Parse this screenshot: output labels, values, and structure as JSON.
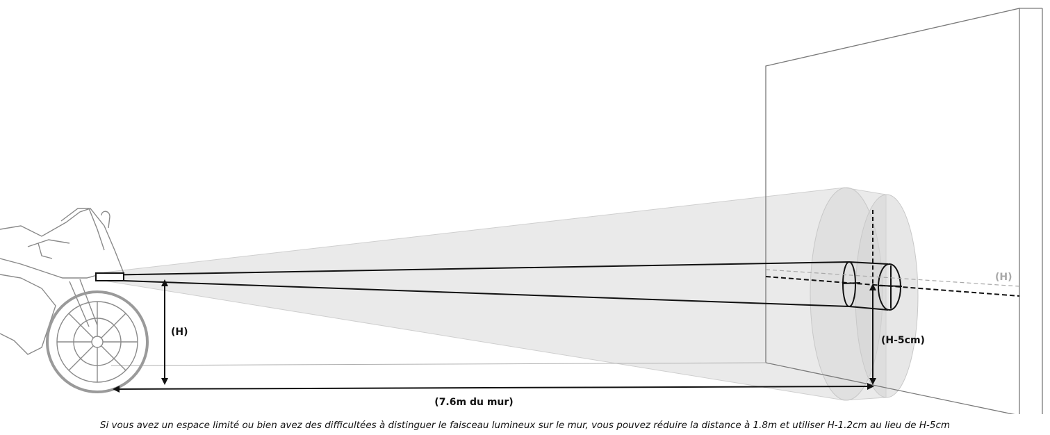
{
  "labels": {
    "height": "(H)",
    "height_wall": "(H)",
    "target": "(H-5cm)",
    "distance": "(7.6m du mur)"
  },
  "caption": "Si vous avez un espace limité ou bien avez des difficultées à distinguer le faisceau lumineux sur le mur, vous pouvez réduire la distance à 1.8m et utiliser H-1.2cm au lieu de H-5cm",
  "colors": {
    "beam_fill": "#dcdcdc",
    "line": "#111111",
    "wall": "#7a7a7a",
    "muted_label": "#a8a8a8"
  }
}
